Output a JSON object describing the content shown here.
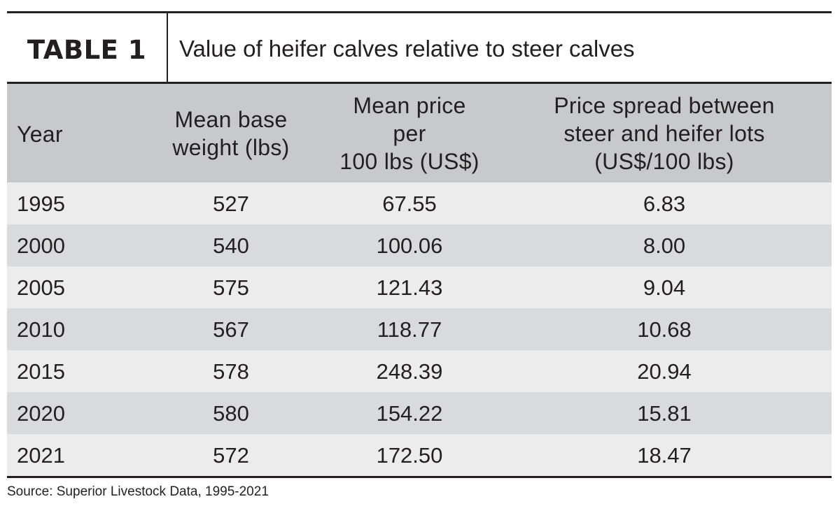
{
  "table": {
    "label": "TABLE 1",
    "caption": "Value of heifer calves relative to steer calves",
    "source": "Source: Superior Livestock Data, 1995-2021"
  },
  "chart_data": {
    "type": "table",
    "title": "Value of heifer calves relative to steer calves",
    "columns": [
      [
        "Year"
      ],
      [
        "Mean base",
        "weight (lbs)"
      ],
      [
        "Mean price per",
        "100 lbs (US$)"
      ],
      [
        "Price spread between",
        "steer and heifer lots",
        "(US$/100 lbs)"
      ]
    ],
    "rows": [
      [
        "1995",
        "527",
        "67.55",
        "6.83"
      ],
      [
        "2000",
        "540",
        "100.06",
        "8.00"
      ],
      [
        "2005",
        "575",
        "121.43",
        "9.04"
      ],
      [
        "2010",
        "567",
        "118.77",
        "10.68"
      ],
      [
        "2015",
        "578",
        "248.39",
        "20.94"
      ],
      [
        "2020",
        "580",
        "154.22",
        "15.81"
      ],
      [
        "2021",
        "572",
        "172.50",
        "18.47"
      ]
    ],
    "colors": {
      "header_bg": "#c8c9cb",
      "row_light": "#ececed",
      "row_dark": "#d9dadc",
      "rule": "#231f20"
    }
  }
}
